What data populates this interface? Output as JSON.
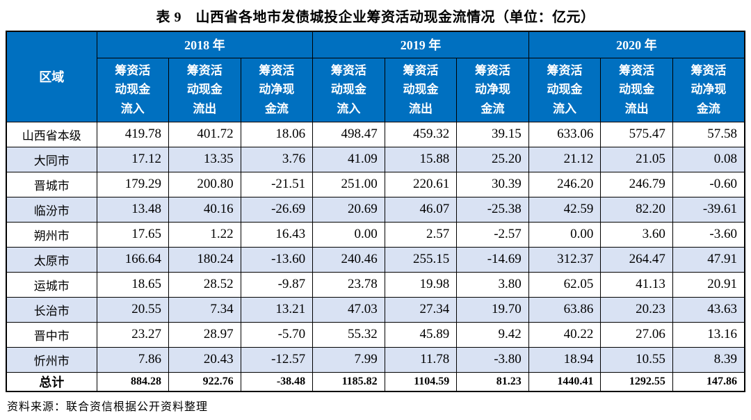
{
  "title": "表 9　山西省各地市发债城投企业筹资活动现金流情况（单位：亿元）",
  "colors": {
    "header_bg": "#0070C0",
    "header_text": "#FFFFFF",
    "stripe_bg": "#D9E2F3",
    "border": "#000000"
  },
  "table": {
    "region_header": "区域",
    "years": [
      {
        "label": "2018 年",
        "columns": [
          "筹资活\n动现金\n流入",
          "筹资活\n动现金\n流出",
          "筹资活\n动净现\n金流"
        ]
      },
      {
        "label": "2019 年",
        "columns": [
          "筹资活\n动现金\n流入",
          "筹资活\n动现金\n流出",
          "筹资活\n动净现\n金流"
        ]
      },
      {
        "label": "2020 年",
        "columns": [
          "筹资活\n动现金\n流入",
          "筹资活\n动现金\n流出",
          "筹资活\n动净现\n金流"
        ]
      }
    ],
    "rows": [
      {
        "region": "山西省本级",
        "shaded": false,
        "values": [
          "419.78",
          "401.72",
          "18.06",
          "498.47",
          "459.32",
          "39.15",
          "633.06",
          "575.47",
          "57.58"
        ]
      },
      {
        "region": "大同市",
        "shaded": true,
        "values": [
          "17.12",
          "13.35",
          "3.76",
          "41.09",
          "15.88",
          "25.20",
          "21.12",
          "21.05",
          "0.08"
        ]
      },
      {
        "region": "晋城市",
        "shaded": false,
        "values": [
          "179.29",
          "200.80",
          "-21.51",
          "251.00",
          "220.61",
          "30.39",
          "246.20",
          "246.79",
          "-0.60"
        ]
      },
      {
        "region": "临汾市",
        "shaded": true,
        "values": [
          "13.48",
          "40.16",
          "-26.69",
          "20.69",
          "46.07",
          "-25.38",
          "42.59",
          "82.20",
          "-39.61"
        ]
      },
      {
        "region": "朔州市",
        "shaded": false,
        "values": [
          "17.65",
          "1.22",
          "16.43",
          "0.00",
          "2.57",
          "-2.57",
          "0.00",
          "3.60",
          "-3.60"
        ]
      },
      {
        "region": "太原市",
        "shaded": true,
        "values": [
          "166.64",
          "180.24",
          "-13.60",
          "240.46",
          "255.15",
          "-14.69",
          "312.37",
          "264.47",
          "47.91"
        ]
      },
      {
        "region": "运城市",
        "shaded": false,
        "values": [
          "18.65",
          "28.52",
          "-9.87",
          "23.78",
          "19.98",
          "3.80",
          "62.05",
          "41.13",
          "20.91"
        ]
      },
      {
        "region": "长治市",
        "shaded": true,
        "values": [
          "20.55",
          "7.34",
          "13.21",
          "47.03",
          "27.34",
          "19.70",
          "63.86",
          "20.23",
          "43.63"
        ]
      },
      {
        "region": "晋中市",
        "shaded": false,
        "values": [
          "23.27",
          "28.97",
          "-5.70",
          "55.32",
          "45.89",
          "9.42",
          "40.22",
          "27.06",
          "13.16"
        ]
      },
      {
        "region": "忻州市",
        "shaded": true,
        "values": [
          "7.86",
          "20.43",
          "-12.57",
          "7.99",
          "11.78",
          "-3.80",
          "18.94",
          "10.55",
          "8.39"
        ]
      }
    ],
    "total": {
      "region": "总计",
      "values": [
        "884.28",
        "922.76",
        "-38.48",
        "1185.82",
        "1104.59",
        "81.23",
        "1440.41",
        "1292.55",
        "147.86"
      ]
    }
  },
  "footer": {
    "source": "资料来源：联合资信根据公开资料整理"
  }
}
